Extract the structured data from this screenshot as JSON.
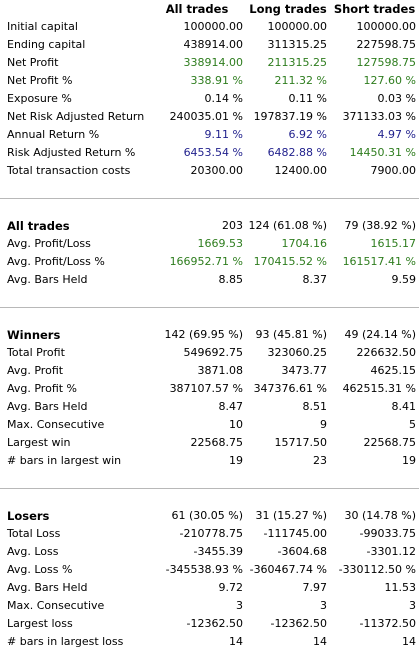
{
  "columns": [
    "All trades",
    "Long trades",
    "Short trades"
  ],
  "overview": [
    {
      "label": "Initial capital",
      "color": "black",
      "values": [
        "100000.00",
        "100000.00",
        "100000.00"
      ]
    },
    {
      "label": "Ending capital",
      "color": "black",
      "values": [
        "438914.00",
        "311315.25",
        "227598.75"
      ]
    },
    {
      "label": "Net Profit",
      "color": "green",
      "values": [
        "338914.00",
        "211315.25",
        "127598.75"
      ]
    },
    {
      "label": "Net Profit %",
      "color": "green",
      "values": [
        "338.91 %",
        "211.32 %",
        "127.60 %"
      ]
    },
    {
      "label": "Exposure %",
      "color": "black",
      "values": [
        "0.14 %",
        "0.11 %",
        "0.03 %"
      ]
    },
    {
      "label": "Net Risk Adjusted Return %",
      "color": "black",
      "values": [
        "240035.01 %",
        "197837.19 %",
        "371133.03 %"
      ]
    },
    {
      "label": "Annual Return %",
      "color": "blue",
      "values": [
        "9.11 %",
        "6.92 %",
        "4.97 %"
      ]
    },
    {
      "label": "Risk Adjusted Return %",
      "colors": [
        "blue",
        "blue",
        "green"
      ],
      "values": [
        "6453.54 %",
        "6482.88 %",
        "14450.31 %"
      ]
    },
    {
      "label": "Total transaction costs",
      "color": "black",
      "values": [
        "20300.00",
        "12400.00",
        "7900.00"
      ]
    }
  ],
  "all_trades": {
    "title": "All trades",
    "values": [
      "203",
      "124 (61.08 %)",
      "79 (38.92 %)"
    ],
    "rows": [
      {
        "label": "Avg. Profit/Loss",
        "color": "green",
        "values": [
          "1669.53",
          "1704.16",
          "1615.17"
        ]
      },
      {
        "label": "Avg. Profit/Loss %",
        "color": "green",
        "values": [
          "166952.71 %",
          "170415.52 %",
          "161517.41 %"
        ]
      },
      {
        "label": "Avg. Bars Held",
        "color": "black",
        "values": [
          "8.85",
          "8.37",
          "9.59"
        ]
      }
    ]
  },
  "winners": {
    "title": "Winners",
    "values": [
      "142 (69.95 %)",
      "93 (45.81 %)",
      "49 (24.14 %)"
    ],
    "rows": [
      {
        "label": "Total Profit",
        "color": "black",
        "values": [
          "549692.75",
          "323060.25",
          "226632.50"
        ]
      },
      {
        "label": "Avg. Profit",
        "color": "black",
        "values": [
          "3871.08",
          "3473.77",
          "4625.15"
        ]
      },
      {
        "label": "Avg. Profit %",
        "color": "black",
        "values": [
          "387107.57 %",
          "347376.61 %",
          "462515.31 %"
        ]
      },
      {
        "label": "Avg. Bars Held",
        "color": "black",
        "values": [
          "8.47",
          "8.51",
          "8.41"
        ]
      },
      {
        "label": "Max. Consecutive",
        "color": "black",
        "values": [
          "10",
          "9",
          "5"
        ]
      },
      {
        "label": "Largest win",
        "color": "black",
        "values": [
          "22568.75",
          "15717.50",
          "22568.75"
        ]
      },
      {
        "label": "# bars in largest win",
        "color": "black",
        "values": [
          "19",
          "23",
          "19"
        ]
      }
    ]
  },
  "losers": {
    "title": "Losers",
    "values": [
      "61 (30.05 %)",
      "31 (15.27 %)",
      "30 (14.78 %)"
    ],
    "rows": [
      {
        "label": "Total Loss",
        "color": "black",
        "values": [
          "-210778.75",
          "-111745.00",
          "-99033.75"
        ]
      },
      {
        "label": "Avg. Loss",
        "color": "black",
        "values": [
          "-3455.39",
          "-3604.68",
          "-3301.12"
        ]
      },
      {
        "label": "Avg. Loss %",
        "color": "black",
        "values": [
          "-345538.93 %",
          "-360467.74 %",
          "-330112.50 %"
        ]
      },
      {
        "label": "Avg. Bars Held",
        "color": "black",
        "values": [
          "9.72",
          "7.97",
          "11.53"
        ]
      },
      {
        "label": "Max. Consecutive",
        "color": "black",
        "values": [
          "3",
          "3",
          "3"
        ]
      },
      {
        "label": "Largest loss",
        "color": "black",
        "values": [
          "-12362.50",
          "-12362.50",
          "-11372.50"
        ]
      },
      {
        "label": "# bars in largest loss",
        "color": "black",
        "values": [
          "14",
          "14",
          "14"
        ]
      }
    ]
  },
  "colors": {
    "green": "#2e7d1e",
    "blue": "#1f1f8c",
    "black": "#000000",
    "separator": "#b8b8b8"
  }
}
